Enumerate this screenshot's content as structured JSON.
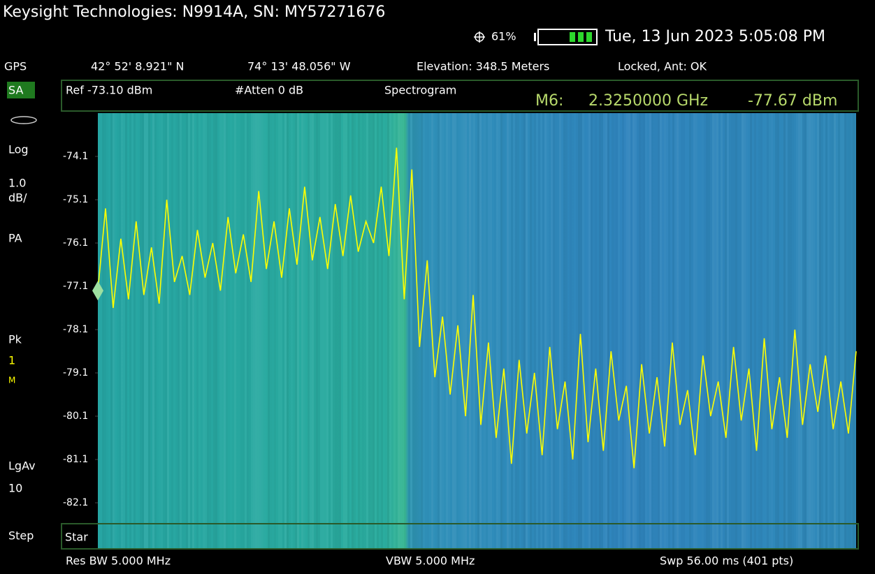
{
  "header": {
    "title": "Keysight Technologies: N9914A, SN: MY57271676",
    "battery": "61%",
    "datetime": "Tue, 13 Jun 2023 5:05:08 PM"
  },
  "gps": {
    "label": "GPS",
    "latitude": "42° 52' 8.921\" N",
    "longitude": "74° 13' 48.056\" W",
    "elevation": "Elevation: 348.5 Meters",
    "status": "Locked, Ant: OK"
  },
  "sidebar": [
    "SA",
    "Log",
    "1.0",
    "dB/",
    "PA",
    "Pk",
    "1",
    "M",
    "LgAv",
    "10",
    "Step"
  ],
  "settings": {
    "ref": "Ref -73.10 dBm",
    "atten": "#Atten 0 dB",
    "mode": "Spectrogram"
  },
  "marker": {
    "label": "M6:",
    "frequency": "2.3250000 GHz",
    "amplitude": "-77.67 dBm"
  },
  "footer": {
    "start": "Star",
    "rbw": "Res BW 5.000 MHz",
    "vbw": "VBW 5.000 MHz",
    "sweep": "Swp 56.00 ms (401 pts)"
  },
  "chart_data": {
    "type": "line",
    "color": "#ffff00",
    "values": [
      -77.2,
      -75.3,
      -77.6,
      -76.0,
      -77.4,
      -75.6,
      -77.3,
      -76.2,
      -77.5,
      -75.1,
      -77.0,
      -76.4,
      -77.3,
      -75.8,
      -76.9,
      -76.1,
      -77.2,
      -75.5,
      -76.8,
      -75.9,
      -77.0,
      -74.9,
      -76.7,
      -75.6,
      -76.9,
      -75.3,
      -76.6,
      -74.8,
      -76.5,
      -75.5,
      -76.7,
      -75.2,
      -76.4,
      -75.0,
      -76.3,
      -75.6,
      -76.1,
      -74.8,
      -76.4,
      -73.9,
      -77.4,
      -74.4,
      -78.5,
      -76.5,
      -79.2,
      -77.8,
      -79.6,
      -78.0,
      -80.1,
      -77.3,
      -80.3,
      -78.4,
      -80.6,
      -79.0,
      -81.2,
      -78.8,
      -80.5,
      -79.1,
      -81.0,
      -78.5,
      -80.4,
      -79.3,
      -81.1,
      -78.2,
      -80.7,
      -79.0,
      -80.9,
      -78.6,
      -80.2,
      -79.4,
      -81.3,
      -78.9,
      -80.5,
      -79.2,
      -80.8,
      -78.4,
      -80.3,
      -79.5,
      -81.0,
      -78.7,
      -80.1,
      -79.3,
      -80.6,
      -78.5,
      -80.2,
      -79.0,
      -80.9,
      -78.3,
      -80.4,
      -79.2,
      -80.6,
      -78.1,
      -80.3,
      -78.9,
      -80.0,
      -78.7,
      -80.4,
      -79.3,
      -80.5,
      -78.6
    ],
    "ylim": [
      -83.1,
      -73.1
    ],
    "yticks": [
      -74.1,
      -75.1,
      -76.1,
      -77.1,
      -78.1,
      -79.1,
      -80.1,
      -81.1,
      -82.1
    ]
  }
}
